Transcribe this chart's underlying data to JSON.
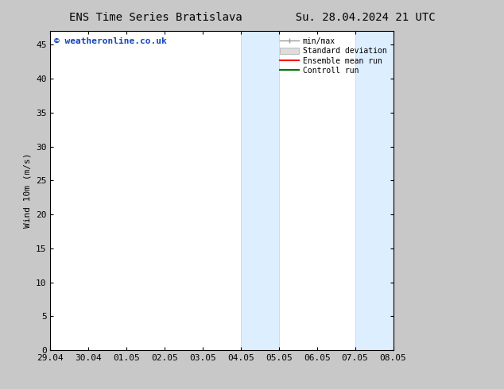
{
  "title_left": "ENS Time Series Bratislava",
  "title_right": "Su. 28.04.2024 21 UTC",
  "ylabel": "Wind 10m (m/s)",
  "ylim": [
    0,
    47
  ],
  "yticks": [
    0,
    5,
    10,
    15,
    20,
    25,
    30,
    35,
    40,
    45
  ],
  "xtick_labels": [
    "29.04",
    "30.04",
    "01.05",
    "02.05",
    "03.05",
    "04.05",
    "05.05",
    "06.05",
    "07.05",
    "08.05"
  ],
  "n_xticks": 10,
  "shaded_bands": [
    {
      "xmin": 5,
      "xmax": 6
    },
    {
      "xmin": 8,
      "xmax": 9
    }
  ],
  "band_color": "#ddeeff",
  "band_edge_color": "#b8d4e8",
  "watermark_text": "© weatheronline.co.uk",
  "watermark_color": "#1144bb",
  "watermark_fontsize": 8,
  "title_fontsize": 10,
  "axis_label_fontsize": 8,
  "tick_fontsize": 8,
  "legend_labels": [
    "min/max",
    "Standard deviation",
    "Ensemble mean run",
    "Controll run"
  ],
  "legend_colors_line": [
    "#aaaaaa",
    "#cccccc",
    "#ff0000",
    "#007700"
  ],
  "fig_bg_color": "#c8c8c8",
  "plot_bg_color": "#ffffff",
  "spine_color": "#000000"
}
